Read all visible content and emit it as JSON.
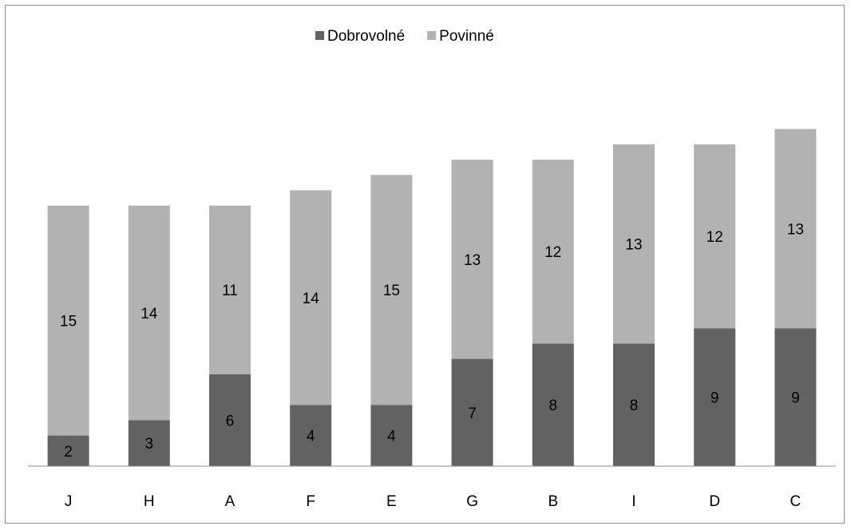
{
  "chart_data": {
    "type": "bar",
    "stacked": true,
    "categories": [
      "J",
      "H",
      "A",
      "F",
      "E",
      "G",
      "B",
      "I",
      "D",
      "C"
    ],
    "series": [
      {
        "name": "Dobrovolné",
        "values": [
          2,
          3,
          6,
          4,
          4,
          7,
          8,
          8,
          9,
          9
        ],
        "color": "#626262"
      },
      {
        "name": "Povinné",
        "values": [
          15,
          14,
          11,
          14,
          15,
          13,
          12,
          13,
          12,
          13
        ],
        "color": "#b2b2b2"
      }
    ],
    "data_labels": true,
    "legend_position": "top-center",
    "grid": false,
    "ylim": [
      0,
      22
    ]
  }
}
